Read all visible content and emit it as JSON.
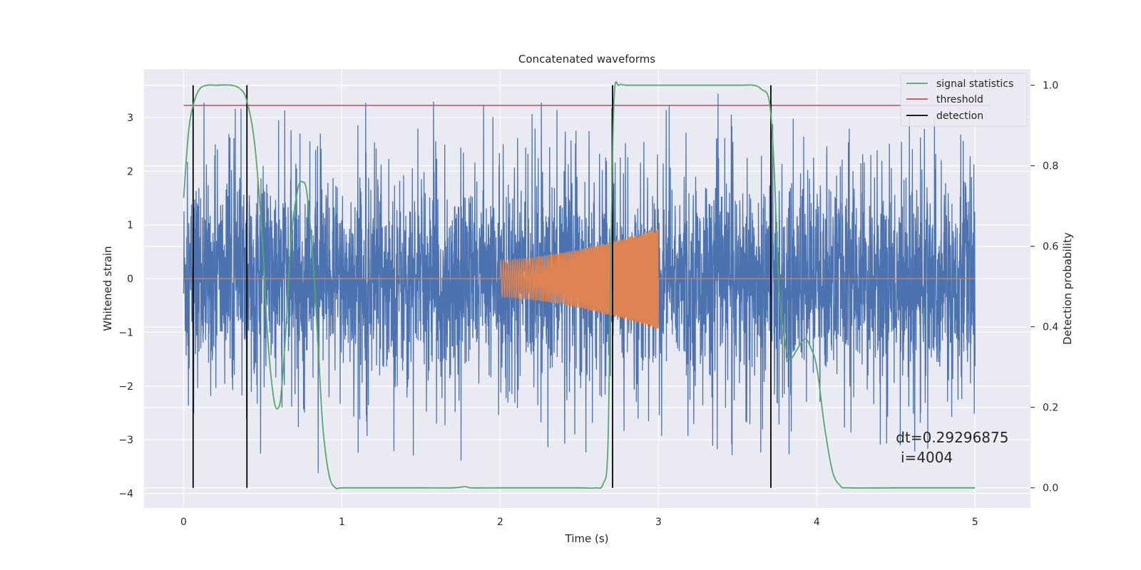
{
  "chart_data": {
    "type": "line",
    "title": "Concatenated waveforms",
    "xlabel": "Time (s)",
    "ylabel": "Whitened strain",
    "ylabel_right": "Detection probability",
    "xlim": [
      -0.25,
      5.35
    ],
    "ylim": [
      -4.27,
      3.9
    ],
    "ylim_right": [
      -0.05,
      1.04
    ],
    "xticks": [
      0,
      1,
      2,
      3,
      4,
      5
    ],
    "yticks": [
      -4,
      -3,
      -2,
      -1,
      0,
      1,
      2,
      3
    ],
    "yticks_right": [
      0.0,
      0.2,
      0.4,
      0.6,
      0.8,
      1.0
    ],
    "grid": true,
    "legend_position": "top-right",
    "legend": [
      "signal statistics",
      "threshold",
      "detection"
    ],
    "colors": {
      "noise": "#4c72b0",
      "injection": "#dd8452",
      "signal_statistics": "#55a868",
      "threshold": "#c44e52",
      "detection": "#000000",
      "background": "#eaeaf2",
      "grid": "#ffffff"
    },
    "series": [
      {
        "name": "signal statistics",
        "axis": "right",
        "x": [
          0.0,
          0.03,
          0.06,
          0.1,
          0.15,
          0.2,
          0.3,
          0.36,
          0.4,
          0.45,
          0.5,
          0.53,
          0.57,
          0.6,
          0.62,
          0.65,
          0.68,
          0.72,
          0.75,
          0.78,
          0.82,
          0.85,
          0.88,
          0.92,
          0.96,
          1.0,
          1.2,
          1.5,
          1.7,
          1.78,
          1.82,
          2.0,
          2.2,
          2.5,
          2.6,
          2.65,
          2.68,
          2.7,
          2.72,
          2.75,
          2.8,
          3.0,
          3.5,
          3.6,
          3.65,
          3.7,
          3.73,
          3.76,
          3.8,
          3.83,
          3.87,
          3.9,
          3.93,
          3.96,
          4.0,
          4.05,
          4.1,
          4.15,
          4.2,
          4.5,
          5.0
        ],
        "y": [
          0.72,
          0.88,
          0.95,
          0.99,
          1.0,
          1.0,
          1.0,
          0.99,
          0.96,
          0.85,
          0.6,
          0.38,
          0.22,
          0.2,
          0.25,
          0.42,
          0.62,
          0.74,
          0.76,
          0.73,
          0.55,
          0.35,
          0.15,
          0.03,
          0.0,
          0.0,
          0.0,
          0.0,
          0.0,
          0.003,
          0.0,
          0.0,
          0.0,
          0.0,
          0.0,
          0.01,
          0.1,
          0.6,
          0.97,
          1.0,
          1.0,
          1.0,
          1.0,
          1.0,
          0.99,
          0.96,
          0.8,
          0.5,
          0.36,
          0.32,
          0.34,
          0.36,
          0.37,
          0.35,
          0.3,
          0.15,
          0.04,
          0.005,
          0.0,
          0.0,
          0.0
        ]
      },
      {
        "name": "threshold",
        "axis": "right",
        "x": [
          0.0,
          5.1
        ],
        "y": [
          0.95,
          0.95
        ]
      },
      {
        "name": "detection",
        "type": "vlines",
        "axis": "right",
        "x": [
          0.06,
          0.4,
          2.71,
          3.71
        ],
        "ymin": 0.0,
        "ymax": 1.0
      },
      {
        "axis": "left",
        "kind": "noise",
        "x": [
          0.0,
          5.0
        ],
        "typical_band": [
          -1.5,
          1.5
        ],
        "peak_max": 3.5,
        "peak_min": -3.9
      },
      {
        "axis": "left",
        "kind": "injection",
        "x": [
          0.0,
          2.0,
          3.0,
          5.0
        ],
        "amplitude": [
          0.0,
          0.35,
          0.95,
          0.0
        ]
      }
    ],
    "annotations": [
      {
        "text": "dt=0.29296875",
        "x": 4.5,
        "y": -3.05
      },
      {
        "text": "i=4004",
        "x": 4.53,
        "y": -3.42
      }
    ]
  }
}
